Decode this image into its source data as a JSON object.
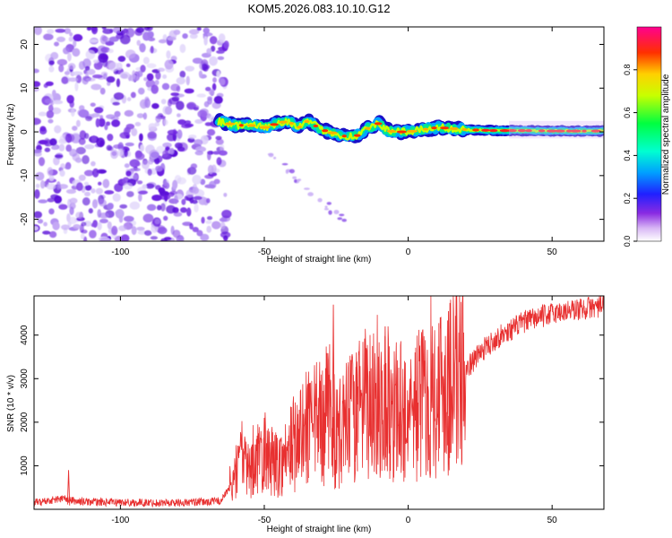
{
  "title": "KOM5.2026.083.10.10.G12",
  "chart_data": [
    {
      "type": "heatmap",
      "title": "KOM5.2026.083.10.10.G12",
      "xlabel": "Height of straight line (km)",
      "ylabel": "Frequency (Hz)",
      "xlim": [
        -130,
        68
      ],
      "ylim": [
        -25,
        24
      ],
      "xticks": [
        -100,
        -50,
        0,
        50
      ],
      "yticks": [
        -20,
        -10,
        0,
        10,
        20
      ],
      "noise_region_x": [
        -130,
        -63
      ],
      "signal_trace": {
        "x": [
          -66,
          -60,
          -55,
          -50,
          -45,
          -42,
          -38,
          -35,
          -30,
          -25,
          -22,
          -18,
          -15,
          -10,
          -8,
          -5,
          0,
          5,
          10,
          15,
          20,
          30,
          40,
          50,
          60,
          68
        ],
        "frequency": [
          2.5,
          1.5,
          1.5,
          1.0,
          2.0,
          2.5,
          1.0,
          2.5,
          0.5,
          -0.5,
          -1.0,
          -1.0,
          0.5,
          2.0,
          0.5,
          0.0,
          0.0,
          0.5,
          1.0,
          0.8,
          0.5,
          0.3,
          0.3,
          0.2,
          0.2,
          0.2
        ]
      },
      "colorbar": {
        "label": "Normalized spectral amplitude",
        "range": [
          0.0,
          1.0
        ],
        "ticks": [
          "0.0",
          "0.2",
          "0.4",
          "0.6",
          "0.8"
        ]
      }
    },
    {
      "type": "line",
      "xlabel": "Height of straight line (km)",
      "ylabel": "SNR (10 * v/v)",
      "xlim": [
        -130,
        68
      ],
      "ylim": [
        0,
        4900
      ],
      "xticks": [
        -100,
        -50,
        0,
        50
      ],
      "yticks": [
        1000,
        2000,
        3000,
        4000
      ],
      "color": "#e83030",
      "x": [
        -130,
        -125,
        -120,
        -115,
        -110,
        -100,
        -90,
        -80,
        -70,
        -65,
        -62,
        -58,
        -55,
        -50,
        -45,
        -40,
        -35,
        -30,
        -27,
        -25,
        -20,
        -15,
        -10,
        -5,
        0,
        5,
        10,
        15,
        20,
        25,
        30,
        35,
        40,
        45,
        50,
        55,
        60,
        65,
        68
      ],
      "y": [
        150,
        200,
        250,
        180,
        170,
        160,
        150,
        150,
        170,
        200,
        500,
        1200,
        900,
        1300,
        1000,
        1500,
        1800,
        2000,
        2300,
        1600,
        2100,
        2300,
        2600,
        2300,
        2200,
        2500,
        2700,
        3000,
        3200,
        3600,
        3900,
        4100,
        4300,
        4400,
        4500,
        4550,
        4600,
        4650,
        4650
      ],
      "peaks": [
        {
          "x": -118,
          "y": 900
        },
        {
          "x": -50,
          "y": 2100
        },
        {
          "x": -35,
          "y": 2700
        },
        {
          "x": -26,
          "y": 4700
        },
        {
          "x": -18,
          "y": 3600
        },
        {
          "x": -8,
          "y": 4200
        },
        {
          "x": 14,
          "y": 4550
        }
      ]
    }
  ]
}
